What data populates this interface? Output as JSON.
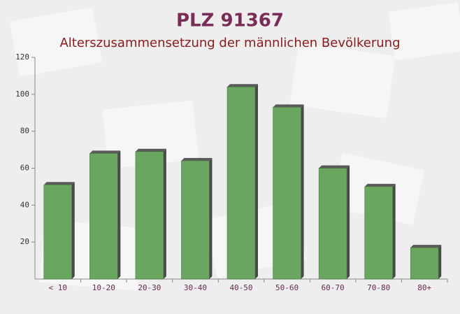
{
  "chart_data": {
    "type": "bar",
    "title": "PLZ 91367",
    "subtitle": "Alterszusammensetzung der männlichen Bevölkerung",
    "categories": [
      "< 10",
      "10-20",
      "20-30",
      "30-40",
      "40-50",
      "50-60",
      "60-70",
      "70-80",
      "80+"
    ],
    "values": [
      51,
      68,
      69,
      64,
      104,
      93,
      60,
      50,
      17
    ],
    "color": "#6aa65f",
    "ylim": [
      0,
      120
    ],
    "yticks": [
      20,
      40,
      60,
      80,
      100,
      120
    ],
    "grid": false
  }
}
